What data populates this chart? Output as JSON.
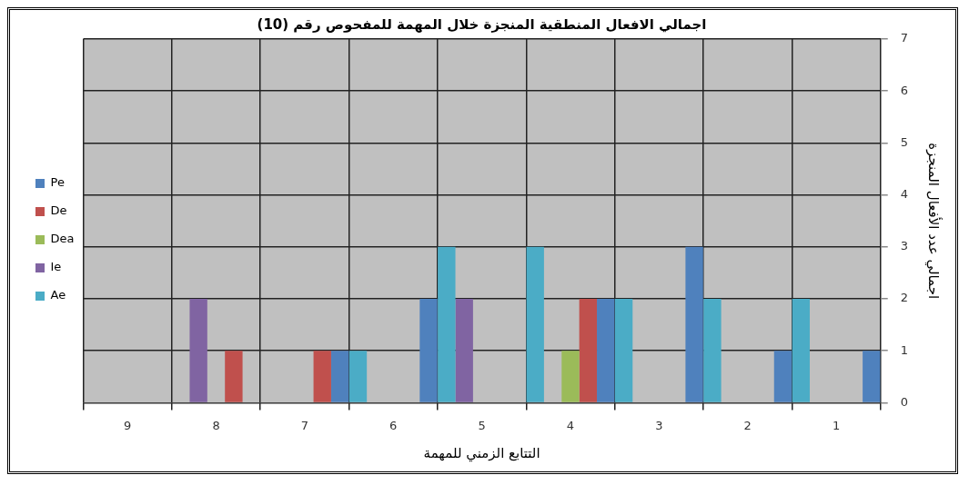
{
  "chart_data": {
    "type": "bar",
    "title": "اجمالي الافعال المنطقية المنجزة خلال المهمة للمفحوص رقم (10)",
    "xlabel": "التتابع الزمني للمهمة",
    "ylabel": "اجمالي عدد الأفعال المنجزة",
    "categories": [
      "9",
      "8",
      "7",
      "6",
      "5",
      "4",
      "3",
      "2",
      "1"
    ],
    "series": [
      {
        "name": "Ae",
        "color": "#4bacc6",
        "values": [
          0,
          0,
          0,
          1,
          3,
          3,
          2,
          2,
          2
        ]
      },
      {
        "name": "Ie",
        "color": "#8064a2",
        "values": [
          0,
          2,
          0,
          0,
          2,
          0,
          0,
          0,
          0
        ]
      },
      {
        "name": "Dea",
        "color": "#9bbb59",
        "values": [
          0,
          0,
          0,
          0,
          0,
          1,
          0,
          0,
          0
        ]
      },
      {
        "name": "De",
        "color": "#c0504d",
        "values": [
          0,
          1,
          1,
          0,
          0,
          2,
          0,
          0,
          0
        ]
      },
      {
        "name": "Pe",
        "color": "#4f81bd",
        "values": [
          0,
          0,
          1,
          2,
          0,
          2,
          3,
          1,
          1
        ]
      }
    ],
    "ylim": [
      0,
      7
    ],
    "yticks": [
      0,
      1,
      2,
      3,
      4,
      5,
      6,
      7
    ],
    "grid": true,
    "legend": "left"
  }
}
